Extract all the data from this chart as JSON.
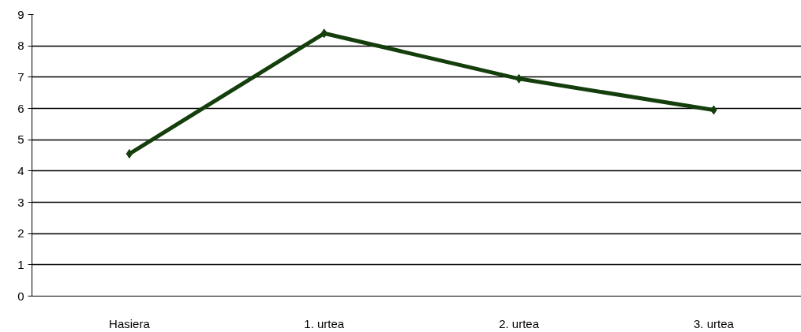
{
  "chart_data": {
    "type": "line",
    "categories": [
      "Hasiera",
      "1. urtea",
      "2. urtea",
      "3. urtea"
    ],
    "series": [
      {
        "color": "#143f0c",
        "values": [
          4.55,
          8.4,
          6.95,
          5.95
        ]
      }
    ],
    "ylim": [
      0,
      9
    ],
    "yticks": [
      0,
      1,
      2,
      3,
      4,
      5,
      6,
      7,
      8,
      9
    ],
    "grid": "y",
    "marker": "diamond",
    "line_style": "solid"
  }
}
